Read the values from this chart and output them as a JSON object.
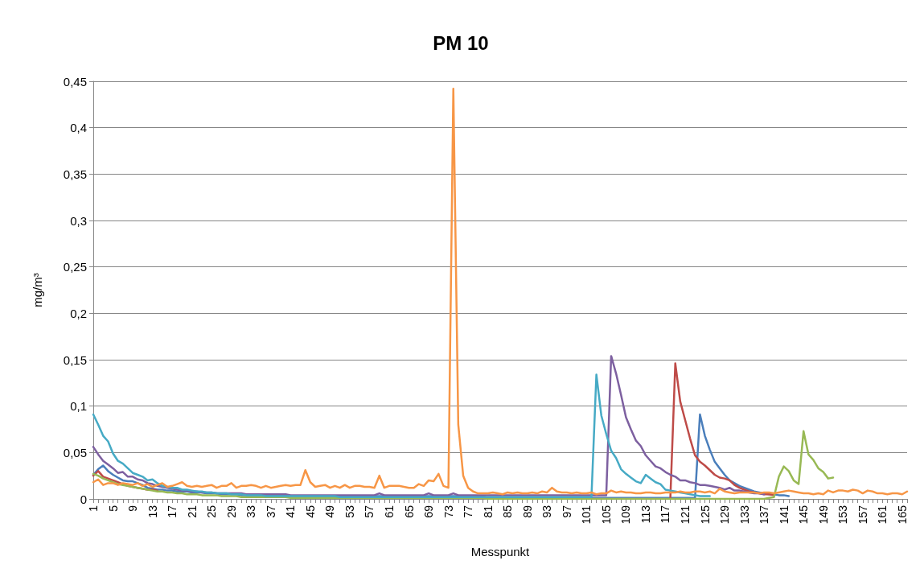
{
  "chart_data": {
    "type": "line",
    "title": "PM 10",
    "xlabel": "Messpunkt",
    "ylabel": "mg/m³",
    "categories": [
      "1",
      null,
      null,
      null,
      "5",
      null,
      null,
      null,
      "9",
      null,
      null,
      null,
      "13",
      null,
      null,
      null,
      "17",
      null,
      null,
      null,
      "21",
      null,
      null,
      null,
      "25",
      null,
      null,
      null,
      "29",
      null,
      null,
      null,
      "33",
      null,
      null,
      null,
      "37",
      null,
      null,
      null,
      "41",
      null,
      null,
      null,
      "45",
      null,
      null,
      null,
      "49",
      null,
      null,
      null,
      "53",
      null,
      null,
      null,
      "57",
      null,
      null,
      null,
      "61",
      null,
      null,
      null,
      "65",
      null,
      null,
      null,
      "69",
      null,
      null,
      null,
      "73",
      null,
      null,
      null,
      "77",
      null,
      null,
      null,
      "81",
      null,
      null,
      null,
      "85",
      null,
      null,
      null,
      "89",
      null,
      null,
      null,
      "93",
      null,
      null,
      null,
      "97",
      null,
      null,
      null,
      "101",
      null,
      null,
      null,
      "105",
      null,
      null,
      null,
      "109",
      null,
      null,
      null,
      "113",
      null,
      null,
      null,
      "117",
      null,
      null,
      null,
      "121",
      null,
      null,
      null,
      "125",
      null,
      null,
      null,
      "129",
      null,
      null,
      null,
      "133",
      null,
      null,
      null,
      "137",
      null,
      null,
      null,
      "141",
      null,
      null,
      null,
      "145",
      null,
      null,
      null,
      "149",
      null,
      null,
      null,
      "153",
      null,
      null,
      null,
      "157",
      null,
      null,
      null,
      "161",
      null,
      null,
      null,
      "165",
      null
    ],
    "ylim": [
      0,
      0.45
    ],
    "yticks": [
      0,
      {
        "value": 0.05,
        "label": "0,05"
      },
      {
        "value": 0.1,
        "label": "0,1"
      },
      {
        "value": 0.15,
        "label": "0,15"
      },
      {
        "value": 0.2,
        "label": "0,2"
      },
      {
        "value": 0.25,
        "label": "0,25"
      },
      {
        "value": 0.3,
        "label": "0,3"
      },
      {
        "value": 0.35,
        "label": "0,35"
      },
      {
        "value": 0.4,
        "label": "0,4"
      },
      {
        "value": 0.45,
        "label": "0,45"
      }
    ],
    "grid": "y",
    "marker": "none",
    "line_style": "solid",
    "series": [
      {
        "color": "#4a7ebb",
        "values": [
          0.026,
          0.032,
          0.036,
          0.03,
          0.026,
          0.023,
          0.02,
          0.019,
          0.019,
          0.017,
          0.015,
          0.012,
          0.011,
          0.01,
          0.01,
          0.009,
          0.009,
          0.008,
          0.008,
          0.008,
          0.007,
          0.007,
          0.007,
          0.006,
          0.006,
          0.006,
          0.005,
          0.005,
          0.005,
          0.005,
          0.004,
          0.004,
          0.004,
          0.004,
          0.004,
          0.004,
          0.004,
          0.004,
          0.004,
          0.004,
          0.003,
          0.003,
          0.003,
          0.003,
          0.003,
          0.003,
          0.003,
          0.003,
          0.003,
          0.003,
          0.003,
          0.003,
          0.003,
          0.003,
          0.003,
          0.003,
          0.003,
          0.003,
          0.003,
          0.003,
          0.003,
          0.003,
          0.003,
          0.003,
          0.003,
          0.003,
          0.003,
          0.003,
          0.003,
          0.003,
          0.003,
          0.003,
          0.003,
          0.003,
          0.003,
          0.003,
          0.003,
          0.003,
          0.003,
          0.003,
          0.001,
          0.001,
          0.001,
          0.001,
          0.001,
          0.001,
          0.001,
          0.001,
          0.001,
          0.001,
          0.001,
          0.001,
          0.001,
          0.001,
          0.001,
          0.001,
          0.001,
          0.001,
          0.001,
          0.001,
          0.001,
          0.001,
          0.001,
          0.001,
          0.001,
          0.001,
          0.001,
          0.001,
          0.001,
          0.001,
          0.001,
          0.001,
          0.001,
          0.001,
          0.001,
          0.001,
          0.001,
          0.001,
          0.001,
          0.001,
          0.001,
          0.001,
          0.001,
          0.091,
          0.068,
          0.053,
          0.04,
          0.033,
          0.026,
          0.02,
          0.017,
          0.014,
          0.012,
          0.01,
          0.008,
          0.007,
          0.006,
          0.005,
          0.005,
          0.004,
          0.004,
          0.003,
          null,
          null,
          null,
          null,
          null,
          null,
          null,
          null,
          null,
          null,
          null,
          null,
          null,
          null,
          null,
          null,
          null,
          null,
          null,
          null,
          null,
          null,
          null,
          null
        ]
      },
      {
        "color": "#be4b48",
        "values": [
          0.025,
          0.03,
          0.024,
          0.022,
          0.02,
          0.018,
          0.016,
          0.014,
          0.013,
          0.012,
          0.011,
          0.01,
          0.01,
          0.009,
          null,
          null,
          null,
          null,
          null,
          null,
          null,
          null,
          null,
          null,
          null,
          null,
          null,
          null,
          null,
          null,
          null,
          null,
          null,
          null,
          null,
          null,
          null,
          null,
          null,
          null,
          null,
          null,
          null,
          null,
          null,
          null,
          null,
          null,
          null,
          null,
          null,
          null,
          null,
          null,
          null,
          null,
          null,
          null,
          null,
          null,
          null,
          null,
          null,
          null,
          null,
          null,
          null,
          null,
          null,
          null,
          null,
          null,
          null,
          null,
          null,
          null,
          null,
          null,
          null,
          null,
          null,
          null,
          null,
          null,
          null,
          null,
          null,
          null,
          null,
          null,
          null,
          null,
          null,
          null,
          null,
          null,
          null,
          null,
          null,
          null,
          null,
          null,
          null,
          null,
          null,
          null,
          null,
          null,
          null,
          null,
          null,
          null,
          null,
          null,
          null,
          null,
          null,
          0.001,
          0.146,
          0.105,
          0.085,
          0.065,
          0.047,
          0.04,
          0.036,
          0.031,
          0.026,
          0.023,
          0.022,
          0.02,
          0.015,
          0.012,
          0.01,
          0.008,
          0.007,
          0.006,
          0.005,
          0.005,
          0.004,
          null,
          null,
          null,
          null,
          null,
          null,
          null,
          null,
          null,
          null,
          null,
          null,
          null,
          null,
          null,
          null,
          null,
          null,
          null,
          null,
          null,
          null,
          null,
          null,
          null,
          null,
          null
        ]
      },
      {
        "color": "#98b954",
        "values": [
          0.027,
          0.025,
          0.022,
          0.02,
          0.018,
          0.016,
          0.015,
          0.014,
          0.013,
          0.012,
          0.011,
          0.01,
          0.009,
          0.008,
          0.008,
          0.007,
          0.007,
          0.006,
          0.006,
          0.005,
          0.005,
          0.005,
          0.004,
          0.004,
          0.004,
          0.004,
          0.003,
          0.003,
          0.003,
          0.003,
          0.002,
          0.002,
          0.002,
          0.002,
          0.002,
          0.002,
          0.002,
          0.002,
          0.002,
          0.002,
          0.001,
          0.001,
          0.001,
          0.001,
          0.001,
          0.001,
          0.001,
          0.001,
          0.001,
          0.001,
          0.001,
          0.001,
          0.001,
          0.001,
          0.001,
          0.001,
          0.001,
          0.001,
          0.001,
          0.001,
          0.001,
          0.001,
          0.001,
          0.001,
          0.001,
          0.001,
          0.001,
          0.001,
          0.001,
          0.001,
          0.001,
          0.001,
          0.001,
          0.001,
          0.001,
          0.001,
          0.001,
          0.001,
          0.001,
          0.001,
          0,
          0,
          0,
          0,
          0,
          0,
          0,
          0,
          0,
          0,
          0,
          0,
          0,
          0,
          0,
          0,
          0,
          0,
          0,
          0,
          0,
          0,
          0,
          0,
          0,
          0,
          0,
          0,
          0,
          0,
          0,
          0,
          0,
          0,
          0,
          0,
          0,
          0,
          0,
          0,
          0,
          0,
          0,
          0,
          0,
          0,
          0,
          0,
          0,
          0,
          0,
          0,
          0,
          0,
          0,
          0,
          0,
          0.001,
          0.002,
          0.024,
          0.035,
          0.03,
          0.02,
          0.016,
          0.073,
          0.048,
          0.042,
          0.033,
          0.029,
          0.022,
          0.023,
          null,
          null,
          null,
          null,
          null,
          null,
          null,
          null,
          null,
          null,
          null,
          null,
          null,
          null,
          null
        ]
      },
      {
        "color": "#7d60a0",
        "values": [
          0.056,
          0.048,
          0.041,
          0.037,
          0.033,
          0.028,
          0.029,
          0.024,
          0.024,
          0.021,
          0.02,
          0.017,
          0.016,
          0.014,
          0.013,
          0.012,
          0.011,
          0.01,
          0.009,
          0.009,
          0.008,
          0.008,
          0.007,
          0.007,
          0.007,
          0.006,
          0.006,
          0.006,
          0.006,
          0.006,
          0.006,
          0.005,
          0.005,
          0.005,
          0.005,
          0.005,
          0.005,
          0.005,
          0.005,
          0.005,
          0.004,
          0.004,
          0.004,
          0.004,
          0.004,
          0.004,
          0.004,
          0.004,
          0.004,
          0.004,
          0.004,
          0.004,
          0.004,
          0.004,
          0.004,
          0.004,
          0.004,
          0.004,
          0.006,
          0.004,
          0.004,
          0.004,
          0.004,
          0.004,
          0.004,
          0.004,
          0.004,
          0.004,
          0.006,
          0.004,
          0.004,
          0.004,
          0.004,
          0.006,
          0.004,
          0.004,
          0.004,
          0.004,
          0.004,
          0.004,
          0.004,
          0.004,
          0.004,
          0.004,
          0.004,
          0.004,
          0.004,
          0.004,
          0.004,
          0.004,
          0.004,
          0.004,
          0.004,
          0.004,
          0.004,
          0.004,
          0.004,
          0.004,
          0.004,
          0.004,
          0.004,
          0.004,
          0.004,
          0.004,
          0.004,
          0.154,
          0.135,
          0.112,
          0.088,
          0.075,
          0.063,
          0.057,
          0.047,
          0.041,
          0.035,
          0.033,
          0.029,
          0.026,
          0.024,
          0.02,
          0.02,
          0.018,
          0.017,
          0.015,
          0.015,
          0.014,
          0.013,
          0.012,
          0.01,
          0.012,
          0.009,
          0.009,
          0.008,
          0.007,
          0.006,
          0.006,
          0.005,
          null,
          null,
          null,
          null,
          null,
          null,
          null,
          null,
          null,
          null,
          null,
          null,
          null,
          null,
          null,
          null,
          null,
          null,
          null,
          null,
          null,
          null,
          null,
          null,
          null,
          null,
          null,
          null,
          null
        ]
      },
      {
        "color": "#46aac5",
        "values": [
          0.091,
          0.08,
          0.068,
          0.062,
          0.049,
          0.041,
          0.038,
          0.033,
          0.028,
          0.026,
          0.024,
          0.02,
          0.021,
          0.017,
          0.014,
          0.013,
          0.012,
          0.012,
          0.01,
          0.01,
          0.009,
          0.008,
          0.008,
          0.007,
          0.007,
          0.006,
          0.006,
          0.006,
          0.005,
          0.005,
          0.005,
          0.004,
          0.004,
          0.004,
          0.004,
          0.003,
          0.003,
          0.003,
          0.003,
          0.003,
          0.003,
          0.003,
          0.003,
          0.003,
          0.003,
          0.003,
          0.003,
          0.003,
          0.003,
          0.003,
          0.002,
          0.002,
          0.002,
          0.002,
          0.002,
          0.002,
          0.002,
          0.002,
          0.002,
          0.002,
          0.002,
          0.002,
          0.002,
          0.002,
          0.002,
          0.002,
          0.002,
          0.002,
          0.002,
          0.002,
          0.002,
          0.002,
          0.002,
          0.002,
          0.002,
          0.002,
          0.002,
          0.002,
          0.002,
          0.002,
          0.002,
          0.002,
          0.002,
          0.002,
          0.002,
          0.002,
          0.002,
          0.002,
          0.002,
          0.002,
          0.002,
          0.002,
          0.002,
          0.002,
          0.002,
          0.002,
          0.002,
          0.002,
          0.002,
          0.002,
          0.002,
          0.002,
          0.134,
          0.09,
          0.07,
          0.052,
          0.044,
          0.032,
          0.027,
          0.023,
          0.019,
          0.017,
          0.026,
          0.022,
          0.018,
          0.016,
          0.01,
          0.009,
          0.008,
          0.007,
          0.006,
          0.005,
          0.004,
          0.003,
          0.003,
          0.003,
          null,
          null,
          null,
          null,
          null,
          null,
          null,
          null,
          null,
          null,
          null,
          null,
          null,
          null,
          null,
          null,
          null,
          null,
          null,
          null,
          null,
          null,
          null,
          null,
          null,
          null,
          null,
          null,
          null,
          null,
          null,
          null,
          null,
          null,
          null,
          null,
          null,
          null,
          null,
          null
        ]
      },
      {
        "color": "#f79646",
        "values": [
          0.018,
          0.021,
          0.015,
          0.017,
          0.017,
          0.015,
          0.017,
          0.016,
          0.015,
          0.017,
          0.014,
          0.016,
          0.013,
          0.015,
          0.017,
          0.013,
          0.014,
          0.016,
          0.018,
          0.014,
          0.013,
          0.014,
          0.013,
          0.014,
          0.015,
          0.012,
          0.014,
          0.014,
          0.017,
          0.012,
          0.014,
          0.014,
          0.015,
          0.014,
          0.012,
          0.014,
          0.012,
          0.013,
          0.014,
          0.015,
          0.014,
          0.015,
          0.015,
          0.031,
          0.018,
          0.013,
          0.014,
          0.015,
          0.012,
          0.014,
          0.012,
          0.015,
          0.012,
          0.014,
          0.014,
          0.013,
          0.013,
          0.012,
          0.025,
          0.012,
          0.014,
          0.014,
          0.014,
          0.013,
          0.012,
          0.012,
          0.016,
          0.014,
          0.02,
          0.019,
          0.027,
          0.014,
          0.012,
          0.442,
          0.08,
          0.025,
          0.012,
          0.008,
          0.006,
          0.006,
          0.006,
          0.007,
          0.006,
          0.005,
          0.007,
          0.006,
          0.007,
          0.006,
          0.006,
          0.007,
          0.006,
          0.008,
          0.007,
          0.012,
          0.008,
          0.007,
          0.007,
          0.006,
          0.007,
          0.006,
          0.006,
          0.007,
          0.005,
          0.006,
          0.006,
          0.009,
          0.007,
          0.008,
          0.007,
          0.007,
          0.006,
          0.006,
          0.007,
          0.007,
          0.006,
          0.006,
          0.007,
          0.007,
          0.007,
          0.008,
          0.007,
          0.007,
          0.008,
          0.008,
          0.007,
          0.008,
          0.006,
          0.011,
          0.008,
          0.007,
          0.006,
          0.007,
          0.007,
          0.007,
          0.007,
          0.006,
          0.007,
          0.007,
          0.006,
          0.007,
          0.008,
          0.009,
          0.008,
          0.007,
          0.006,
          0.006,
          0.005,
          0.006,
          0.005,
          0.009,
          0.007,
          0.009,
          0.009,
          0.008,
          0.01,
          0.009,
          0.006,
          0.009,
          0.008,
          0.006,
          0.006,
          0.005,
          0.006,
          0.006,
          0.005,
          0.008
        ]
      }
    ]
  }
}
